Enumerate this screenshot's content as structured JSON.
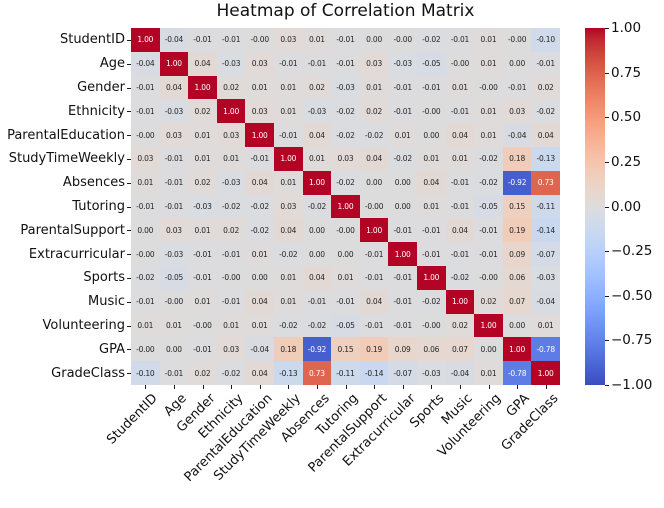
{
  "chart_data": {
    "type": "heatmap",
    "title": "Heatmap of Correlation Matrix",
    "labels": [
      "StudentID",
      "Age",
      "Gender",
      "Ethnicity",
      "ParentalEducation",
      "StudyTimeWeekly",
      "Absences",
      "Tutoring",
      "ParentalSupport",
      "Extracurricular",
      "Sports",
      "Music",
      "Volunteering",
      "GPA",
      "GradeClass"
    ],
    "matrix": [
      [
        "1.00",
        "-0.04",
        "-0.01",
        "-0.01",
        "-0.00",
        "0.03",
        "0.01",
        "-0.01",
        "0.00",
        "-0.00",
        "-0.02",
        "-0.01",
        "0.01",
        "-0.00",
        "-0.10"
      ],
      [
        "-0.04",
        "1.00",
        "0.04",
        "-0.03",
        "0.03",
        "-0.01",
        "-0.01",
        "-0.01",
        "0.03",
        "-0.03",
        "-0.05",
        "-0.00",
        "0.01",
        "0.00",
        "-0.01"
      ],
      [
        "-0.01",
        "0.04",
        "1.00",
        "0.02",
        "0.01",
        "0.01",
        "0.02",
        "-0.03",
        "0.01",
        "-0.01",
        "-0.01",
        "0.01",
        "-0.00",
        "-0.01",
        "0.02"
      ],
      [
        "-0.01",
        "-0.03",
        "0.02",
        "1.00",
        "0.03",
        "0.01",
        "-0.03",
        "-0.02",
        "0.02",
        "-0.01",
        "-0.00",
        "-0.01",
        "0.01",
        "0.03",
        "-0.02"
      ],
      [
        "-0.00",
        "0.03",
        "0.01",
        "0.03",
        "1.00",
        "-0.01",
        "0.04",
        "-0.02",
        "-0.02",
        "0.01",
        "0.00",
        "0.04",
        "0.01",
        "-0.04",
        "0.04"
      ],
      [
        "0.03",
        "-0.01",
        "0.01",
        "0.01",
        "-0.01",
        "1.00",
        "0.01",
        "0.03",
        "0.04",
        "-0.02",
        "0.01",
        "0.01",
        "-0.02",
        "0.18",
        "-0.13"
      ],
      [
        "0.01",
        "-0.01",
        "0.02",
        "-0.03",
        "0.04",
        "0.01",
        "1.00",
        "-0.02",
        "0.00",
        "0.00",
        "0.04",
        "-0.01",
        "-0.02",
        "-0.92",
        "0.73"
      ],
      [
        "-0.01",
        "-0.01",
        "-0.03",
        "-0.02",
        "-0.02",
        "0.03",
        "-0.02",
        "1.00",
        "-0.00",
        "0.00",
        "0.01",
        "-0.01",
        "-0.05",
        "0.15",
        "-0.11"
      ],
      [
        "0.00",
        "0.03",
        "0.01",
        "0.02",
        "-0.02",
        "0.04",
        "0.00",
        "-0.00",
        "1.00",
        "-0.01",
        "-0.01",
        "0.04",
        "-0.01",
        "0.19",
        "-0.14"
      ],
      [
        "-0.00",
        "-0.03",
        "-0.01",
        "-0.01",
        "0.01",
        "-0.02",
        "0.00",
        "0.00",
        "-0.01",
        "1.00",
        "-0.01",
        "-0.01",
        "-0.01",
        "0.09",
        "-0.07"
      ],
      [
        "-0.02",
        "-0.05",
        "-0.01",
        "-0.00",
        "0.00",
        "0.01",
        "0.04",
        "0.01",
        "-0.01",
        "-0.01",
        "1.00",
        "-0.02",
        "-0.00",
        "0.06",
        "-0.03"
      ],
      [
        "-0.01",
        "-0.00",
        "0.01",
        "-0.01",
        "0.04",
        "0.01",
        "-0.01",
        "-0.01",
        "0.04",
        "-0.01",
        "-0.02",
        "1.00",
        "0.02",
        "0.07",
        "-0.04"
      ],
      [
        "0.01",
        "0.01",
        "-0.00",
        "0.01",
        "0.01",
        "-0.02",
        "-0.02",
        "-0.05",
        "-0.01",
        "-0.01",
        "-0.00",
        "0.02",
        "1.00",
        "0.00",
        "0.01"
      ],
      [
        "-0.00",
        "0.00",
        "-0.01",
        "0.03",
        "-0.04",
        "0.18",
        "-0.92",
        "0.15",
        "0.19",
        "0.09",
        "0.06",
        "0.07",
        "0.00",
        "1.00",
        "-0.78"
      ],
      [
        "-0.10",
        "-0.01",
        "0.02",
        "-0.02",
        "0.04",
        "-0.13",
        "0.73",
        "-0.11",
        "-0.14",
        "-0.07",
        "-0.03",
        "-0.04",
        "0.01",
        "-0.78",
        "1.00"
      ]
    ],
    "vmin": -1,
    "vmax": 1,
    "colorbar_ticks": [
      "1.00",
      "0.75",
      "0.50",
      "0.25",
      "0.00",
      "−0.25",
      "−0.50",
      "−0.75",
      "−1.00"
    ],
    "colormap": {
      "name": "coolwarm",
      "anchors": [
        "#3b4cc0",
        "#445acc",
        "#4d68d7",
        "#5775e1",
        "#6282ea",
        "#6c8ef1",
        "#779af7",
        "#82a5fb",
        "#8db0fe",
        "#98b9ff",
        "#a3c2ff",
        "#aec9fd",
        "#b8d0f9",
        "#c2d5f4",
        "#ccd9ee",
        "#d5dbe6",
        "#dddcdc",
        "#e5d8d1",
        "#ecd3c5",
        "#f1ccb9",
        "#f5c4ad",
        "#f7bba0",
        "#f7b194",
        "#f7a687",
        "#f49a7b",
        "#f18d6f",
        "#ec7f63",
        "#e57058",
        "#de604d",
        "#d55042",
        "#cb3e38",
        "#c0282f",
        "#b40426"
      ]
    },
    "annotation_text_dark": "#262626",
    "annotation_text_light": "#ffffff"
  }
}
